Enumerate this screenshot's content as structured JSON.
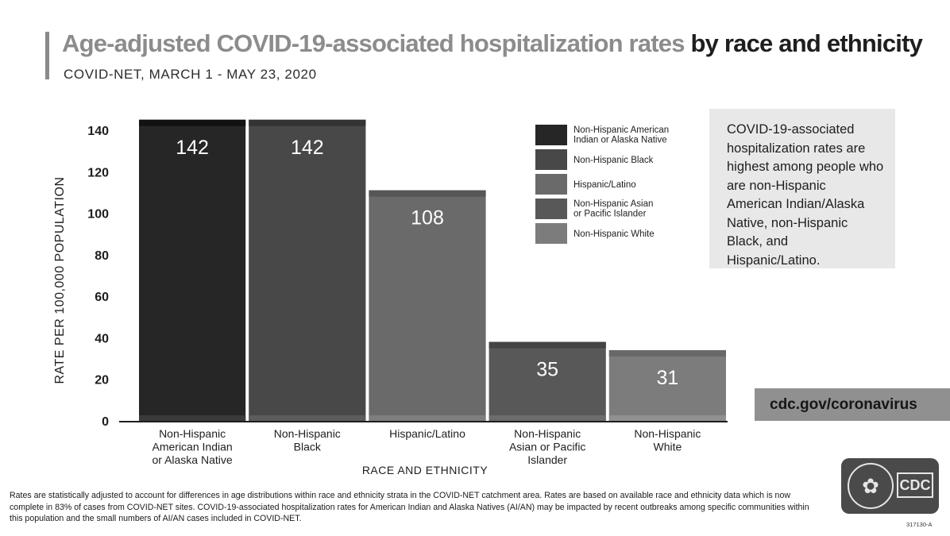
{
  "header": {
    "title_part1": "Age-adjusted COVID-19-associated hospitalization rates",
    "title_part2": "by race and ethnicity",
    "subtitle": "COVID-NET, MARCH 1 - MAY 23, 2020"
  },
  "callout": {
    "text": "COVID-19-associated hospitalization rates are highest among people who are non-Hispanic American Indian/Alaska Native, non-Hispanic Black, and Hispanic/Latino."
  },
  "website": "cdc.gov/coronavirus",
  "footnote": "Rates are statistically adjusted to account for differences in age distributions within race and ethnicity strata in the COVID-NET catchment area. Rates are based on available race and ethnicity data which is now complete in 83% of cases from COVID-NET sites. COVID-19-associated hospitalization rates for American Indian and Alaska Natives (AI/AN) may be impacted by recent outbreaks among specific communities within this population and the small numbers of AI/AN cases included in COVID-NET.",
  "logo": {
    "text": "CDC",
    "seal_icon": "hhs-eagle-seal-icon"
  },
  "doc_code": "317130-A",
  "colors": {
    "Non-Hispanic American Indian or Alaska Native": "#262626",
    "Non-Hispanic Black": "#484848",
    "Hispanic/Latino": "#6a6a6a",
    "Non-Hispanic Asian or Pacific Islander": "#585858",
    "Non-Hispanic White": "#7c7c7c"
  },
  "chart_data": {
    "type": "bar",
    "categories": [
      [
        "Non-Hispanic",
        "American Indian",
        "or Alaska Native"
      ],
      [
        "Non-Hispanic",
        "Black"
      ],
      [
        "Hispanic/Latino"
      ],
      [
        "Non-Hispanic",
        "Asian or Pacific",
        "Islander"
      ],
      [
        "Non-Hispanic",
        "White"
      ]
    ],
    "values": [
      142,
      142,
      108,
      35,
      31
    ],
    "data_labels": [
      "142",
      "142",
      "108",
      "35",
      "31"
    ],
    "xlabel": "RACE AND ETHNICITY",
    "ylabel": "RATE PER 100,000 POPULATION",
    "ylim": [
      0,
      140
    ],
    "yticks": [
      0,
      20,
      40,
      60,
      80,
      100,
      120,
      140
    ],
    "grid": false,
    "legend_position": "top-right",
    "legend": [
      [
        "Non-Hispanic American",
        "Indian or Alaska Native"
      ],
      [
        "Non-Hispanic Black"
      ],
      [
        "Hispanic/Latino"
      ],
      [
        "Non-Hispanic Asian",
        "or Pacific Islander"
      ],
      [
        "Non-Hispanic White"
      ]
    ]
  }
}
